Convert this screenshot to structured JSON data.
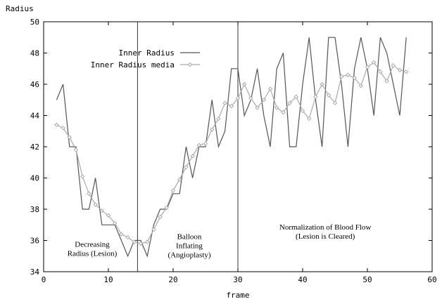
{
  "chart_data": {
    "type": "line",
    "title": "",
    "ylabel": "Radius",
    "xlabel": "frame",
    "xlim": [
      0,
      60
    ],
    "ylim": [
      34,
      50
    ],
    "xticks": [
      0,
      10,
      20,
      30,
      40,
      50,
      60
    ],
    "yticks": [
      34,
      36,
      38,
      40,
      42,
      44,
      46,
      48,
      50
    ],
    "grid": false,
    "legend_position": "top-center",
    "vlines": [
      14.5,
      30
    ],
    "series": [
      {
        "name": "Inner Radius",
        "color": "#555555",
        "marker": "none",
        "x": [
          2,
          3,
          4,
          5,
          6,
          7,
          8,
          9,
          10,
          11,
          12,
          13,
          14,
          15,
          16,
          17,
          18,
          19,
          20,
          21,
          22,
          23,
          24,
          25,
          26,
          27,
          28,
          29,
          30,
          31,
          32,
          33,
          34,
          35,
          36,
          37,
          38,
          39,
          40,
          41,
          42,
          43,
          44,
          45,
          46,
          47,
          48,
          49,
          50,
          51,
          52,
          53,
          54,
          55,
          56
        ],
        "values": [
          45,
          46,
          42,
          42,
          38,
          38,
          40,
          37,
          37,
          37,
          36,
          35,
          36,
          36,
          35,
          37,
          38,
          38,
          39,
          39,
          42,
          40,
          42,
          42,
          45,
          42,
          43,
          47,
          47,
          44,
          45,
          47,
          44,
          42,
          47,
          48,
          42,
          42,
          46,
          49,
          45,
          42,
          49,
          49,
          46,
          42,
          47,
          49,
          47,
          44,
          49,
          48,
          46,
          44,
          49
        ]
      },
      {
        "name": "Inner Radius media",
        "color": "#aaaaaa",
        "marker": "diamond",
        "x": [
          2,
          3,
          4,
          5,
          6,
          7,
          8,
          9,
          10,
          11,
          12,
          13,
          14,
          15,
          16,
          17,
          18,
          19,
          20,
          21,
          22,
          23,
          24,
          25,
          26,
          27,
          28,
          29,
          30,
          31,
          32,
          33,
          34,
          35,
          36,
          37,
          38,
          39,
          40,
          41,
          42,
          43,
          44,
          45,
          46,
          47,
          48,
          49,
          50,
          51,
          52,
          53,
          54,
          55,
          56
        ],
        "values": [
          43.4,
          43.2,
          42.6,
          41.8,
          40.1,
          39.0,
          38.3,
          37.9,
          37.6,
          37.1,
          36.4,
          36.2,
          35.9,
          35.8,
          35.9,
          36.7,
          37.5,
          38.1,
          39.2,
          39.9,
          40.7,
          41.4,
          42.1,
          42.2,
          43.1,
          43.8,
          44.8,
          44.6,
          45.1,
          46.0,
          45.1,
          44.5,
          45.0,
          45.7,
          44.5,
          44.2,
          44.8,
          45.2,
          44.3,
          43.8,
          45.2,
          46.0,
          45.3,
          44.8,
          46.5,
          46.6,
          46.4,
          45.9,
          47.1,
          47.4,
          46.8,
          46.2,
          47.2,
          46.9,
          46.8
        ]
      }
    ],
    "annotations": [
      {
        "lines": [
          "Decreasing",
          "Radius (Lesion)"
        ],
        "x": 7.5,
        "y": 35.6
      },
      {
        "lines": [
          "Balloon",
          "Inflating",
          "(Angioplasty)"
        ],
        "x": 22.5,
        "y": 36.1
      },
      {
        "lines": [
          "Normalization of Blood Flow",
          "(Lesion is Cleared)"
        ],
        "x": 43.5,
        "y": 36.7
      }
    ]
  }
}
